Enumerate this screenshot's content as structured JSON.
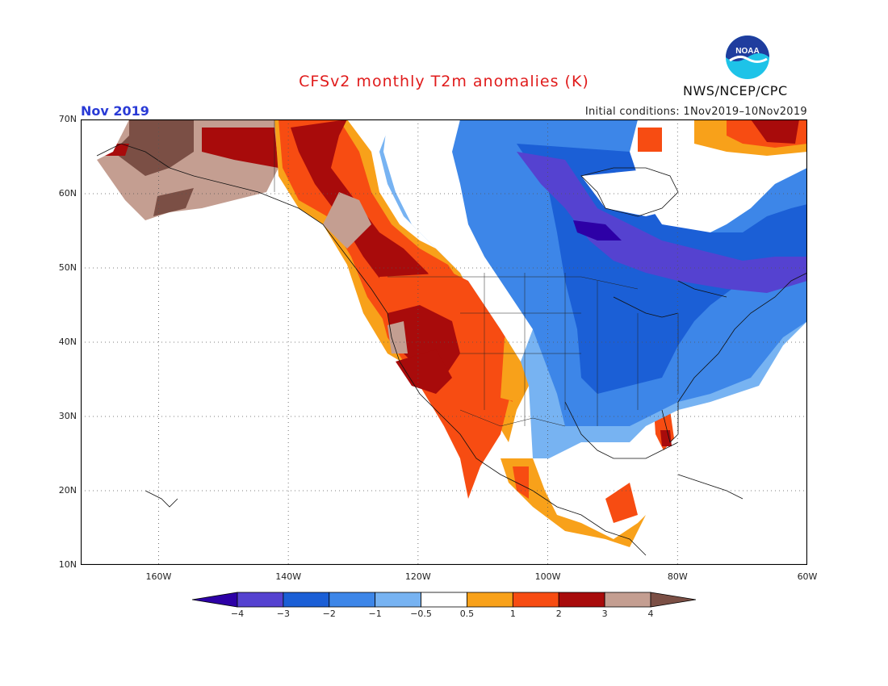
{
  "title": "CFSv2 monthly T2m anomalies (K)",
  "month_label": "Nov 2019",
  "initial_conditions": "Initial conditions: 1Nov2019–10Nov2019",
  "agency": "NWS/NCEP/CPC",
  "logo_text": "NOAA",
  "logo_icon": "noaa-logo",
  "map": {
    "lon_range": [
      -172,
      -60
    ],
    "lat_range": [
      10,
      70
    ],
    "lat_labels": [
      "70N",
      "60N",
      "50N",
      "40N",
      "30N",
      "20N",
      "10N"
    ],
    "lon_labels": [
      "160W",
      "140W",
      "120W",
      "100W",
      "80W",
      "60W"
    ],
    "gridlines": "dotted"
  },
  "colorbar": {
    "colors": [
      "#2d00a6",
      "#5542d0",
      "#1b5fd6",
      "#3d86e8",
      "#77b3f2",
      "#ffffff",
      "#f8a11a",
      "#f74c12",
      "#a80b0b",
      "#c49e91",
      "#7b4f45"
    ],
    "labels": [
      "−4",
      "−3",
      "−2",
      "−1",
      "−0.5",
      "0.5",
      "1",
      "2",
      "3",
      "4"
    ]
  },
  "colors": {
    "title": "#e01b1b",
    "month_label": "#2a3bd6",
    "logo_blue": "#1f3d9e",
    "logo_cyan": "#1ec3e8"
  }
}
